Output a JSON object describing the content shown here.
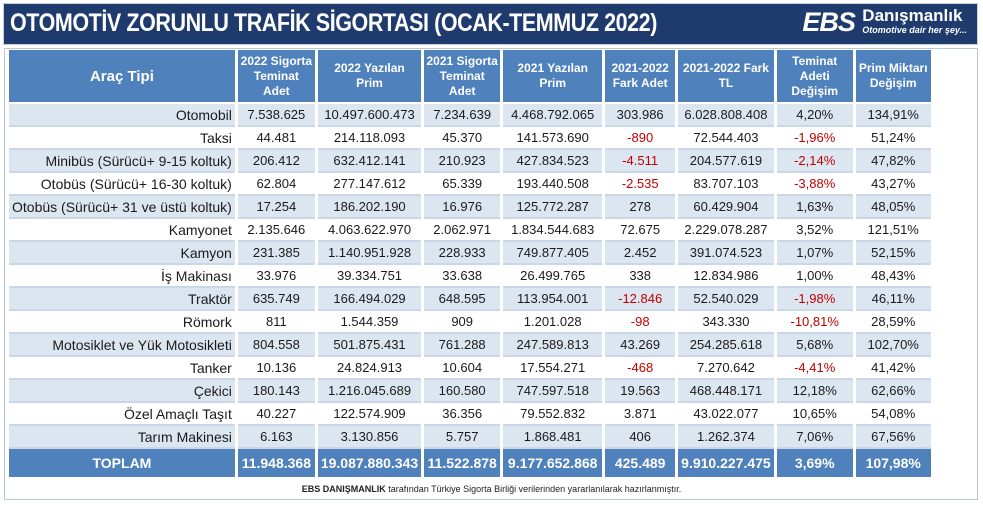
{
  "title": "OTOMOTİV ZORUNLU TRAFİK SİGORTASI  (OCAK-TEMMUZ 2022)",
  "logo": {
    "brand": "EBS",
    "name": "Danışmanlık",
    "tagline": "Otomotive dair her şey..."
  },
  "colors": {
    "header": "#4f81bd",
    "title_bg": "#1f3b6e",
    "row_alt": "#dce6f1",
    "negative": "#c00000"
  },
  "columns": [
    "Araç Tipi",
    "2022 Sigorta Teminat Adet",
    "2022 Yazılan Prim",
    "2021 Sigorta Teminat Adet",
    "2021 Yazılan Prim",
    "2021-2022 Fark Adet",
    "2021-2022 Fark TL",
    "Teminat Adeti Değişim",
    "Prim Miktarı Değişim"
  ],
  "rows": [
    [
      "Otomobil",
      "7.538.625",
      "10.497.600.473",
      "7.234.639",
      "4.468.792.065",
      "303.986",
      "6.028.808.408",
      "4,20%",
      "134,91%"
    ],
    [
      "Taksi",
      "44.481",
      "214.118.093",
      "45.370",
      "141.573.690",
      "-890",
      "72.544.403",
      "-1,96%",
      "51,24%"
    ],
    [
      "Minibüs (Sürücü+ 9-15 koltuk)",
      "206.412",
      "632.412.141",
      "210.923",
      "427.834.523",
      "-4.511",
      "204.577.619",
      "-2,14%",
      "47,82%"
    ],
    [
      "Otobüs (Sürücü+ 16-30 koltuk)",
      "62.804",
      "277.147.612",
      "65.339",
      "193.440.508",
      "-2.535",
      "83.707.103",
      "-3,88%",
      "43,27%"
    ],
    [
      "Otobüs (Sürücü+ 31 ve üstü koltuk)",
      "17.254",
      "186.202.190",
      "16.976",
      "125.772.287",
      "278",
      "60.429.904",
      "1,63%",
      "48,05%"
    ],
    [
      "Kamyonet",
      "2.135.646",
      "4.063.622.970",
      "2.062.971",
      "1.834.544.683",
      "72.675",
      "2.229.078.287",
      "3,52%",
      "121,51%"
    ],
    [
      "Kamyon",
      "231.385",
      "1.140.951.928",
      "228.933",
      "749.877.405",
      "2.452",
      "391.074.523",
      "1,07%",
      "52,15%"
    ],
    [
      "İş Makinası",
      "33.976",
      "39.334.751",
      "33.638",
      "26.499.765",
      "338",
      "12.834.986",
      "1,00%",
      "48,43%"
    ],
    [
      "Traktör",
      "635.749",
      "166.494.029",
      "648.595",
      "113.954.001",
      "-12.846",
      "52.540.029",
      "-1,98%",
      "46,11%"
    ],
    [
      "Römork",
      "811",
      "1.544.359",
      "909",
      "1.201.028",
      "-98",
      "343.330",
      "-10,81%",
      "28,59%"
    ],
    [
      "Motosiklet ve Yük Motosikleti",
      "804.558",
      "501.875.431",
      "761.288",
      "247.589.813",
      "43.269",
      "254.285.618",
      "5,68%",
      "102,70%"
    ],
    [
      "Tanker",
      "10.136",
      "24.824.913",
      "10.604",
      "17.554.271",
      "-468",
      "7.270.642",
      "-4,41%",
      "41,42%"
    ],
    [
      "Çekici",
      "180.143",
      "1.216.045.689",
      "160.580",
      "747.597.518",
      "19.563",
      "468.448.171",
      "12,18%",
      "62,66%"
    ],
    [
      "Özel Amaçlı Taşıt",
      "40.227",
      "122.574.909",
      "36.356",
      "79.552.832",
      "3.871",
      "43.022.077",
      "10,65%",
      "54,08%"
    ],
    [
      "Tarım Makinesi",
      "6.163",
      "3.130.856",
      "5.757",
      "1.868.481",
      "406",
      "1.262.374",
      "7,06%",
      "67,56%"
    ]
  ],
  "total": [
    "TOPLAM",
    "11.948.368",
    "19.087.880.343",
    "11.522.878",
    "9.177.652.868",
    "425.489",
    "9.910.227.475",
    "3,69%",
    "107,98%"
  ],
  "footer": {
    "brand": "EBS DANIŞMANLIK",
    "text": " tarafından Türkiye Sigorta Birliği verilerinden yararlanılarak hazırlanmıştır."
  }
}
